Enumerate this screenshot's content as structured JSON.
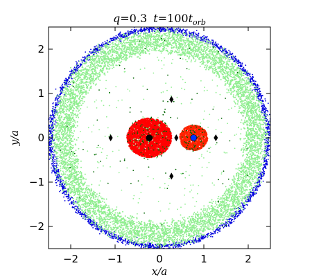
{
  "chart_data": {
    "type": "scatter",
    "title": "q = 0.3  t = 100t_orb",
    "title_parts": {
      "q": "q",
      "q_val": "=0.3",
      "t": "t",
      "t_val": "=100",
      "torb": "t",
      "orb_sub": "orb"
    },
    "xlabel": "x/a",
    "ylabel": "y/a",
    "xlim": [
      -2.5,
      2.5
    ],
    "ylim": [
      -2.5,
      2.5
    ],
    "xticks": [
      -2,
      -1,
      0,
      1,
      2
    ],
    "yticks": [
      -2,
      -1,
      0,
      1,
      2
    ],
    "xtick_labels": [
      "−2",
      "−1",
      "0",
      "1",
      "2"
    ],
    "ytick_labels": [
      "−2",
      "−1",
      "0",
      "1",
      "2"
    ],
    "colors": {
      "outer_edge": "#0000dd",
      "disk": "#90ee90",
      "scattered": "#006400",
      "primary_halo": "#ff0000",
      "secondary_halo": "#ff2200",
      "primary_star": "#000000",
      "secondary_star": "#0033ff",
      "lagrange": "#000000"
    },
    "circumbinary_disk": {
      "inner_radius": 1.95,
      "outer_radius": 2.4,
      "edge_radius": 2.45
    },
    "primary": {
      "x": -0.23,
      "y": 0.0,
      "halo_radius": 0.48
    },
    "secondary": {
      "x": 0.77,
      "y": 0.0,
      "halo_radius": 0.3
    },
    "lagrange_points": [
      {
        "name": "L1",
        "x": 0.38,
        "y": 0.0
      },
      {
        "name": "L2",
        "x": 1.27,
        "y": 0.0
      },
      {
        "name": "L3",
        "x": -1.1,
        "y": 0.0
      },
      {
        "name": "L4",
        "x": 0.27,
        "y": 0.866
      },
      {
        "name": "L5",
        "x": 0.27,
        "y": -0.866
      }
    ]
  }
}
